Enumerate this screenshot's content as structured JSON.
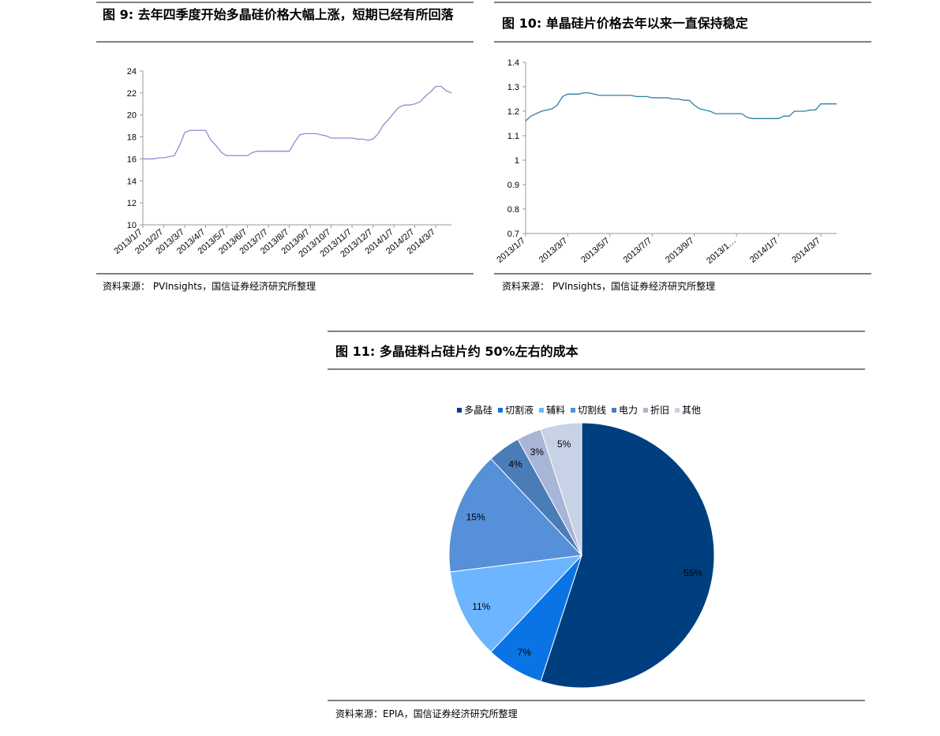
{
  "chart_data": [
    {
      "type": "line",
      "title": "图 9: 去年四季度开始多晶硅价格大幅上涨，短期已经有所回落",
      "source": "资料来源： PVInsights，国信证券经济研究所整理",
      "color": "#8a8fd0",
      "categories": [
        "2013/1/7",
        null,
        null,
        null,
        "2013/2/7",
        null,
        null,
        null,
        "2013/3/7",
        null,
        null,
        null,
        "2013/4/7",
        null,
        null,
        null,
        "2013/5/7",
        null,
        null,
        null,
        "2013/6/7",
        null,
        null,
        null,
        "2013/7/7",
        null,
        null,
        null,
        "2013/8/7",
        null,
        null,
        null,
        "2013/9/7",
        null,
        null,
        null,
        "2013/10/7",
        null,
        null,
        null,
        "2013/11/7",
        null,
        null,
        null,
        "2013/12/7",
        null,
        null,
        null,
        "2014/1/7",
        null,
        null,
        null,
        "2014/2/7",
        null,
        null,
        null,
        "2014/3/7",
        null,
        null,
        null
      ],
      "values": [
        16.0,
        16.0,
        16.0,
        16.1,
        16.1,
        16.2,
        16.3,
        17.2,
        18.4,
        18.6,
        18.6,
        18.6,
        18.6,
        17.7,
        17.2,
        16.6,
        16.3,
        16.3,
        16.3,
        16.3,
        16.3,
        16.6,
        16.7,
        16.7,
        16.7,
        16.7,
        16.7,
        16.7,
        16.7,
        17.5,
        18.2,
        18.3,
        18.3,
        18.3,
        18.2,
        18.1,
        17.9,
        17.9,
        17.9,
        17.9,
        17.9,
        17.8,
        17.8,
        17.7,
        17.8,
        18.3,
        19.1,
        19.6,
        20.2,
        20.7,
        20.9,
        20.9,
        21.0,
        21.2,
        21.7,
        22.1,
        22.6,
        22.6,
        22.2,
        22.0
      ],
      "ylim": [
        10,
        24
      ],
      "yticks": [
        10,
        12,
        14,
        16,
        18,
        20,
        22,
        24
      ]
    },
    {
      "type": "line",
      "title": "图 10:  单晶硅片价格去年以来一直保持稳定",
      "source": "资料来源： PVInsights，国信证券经济研究所整理",
      "color": "#2f7fa6",
      "categories": [
        "2013/1/7",
        null,
        null,
        null,
        null,
        null,
        null,
        null,
        "2013/3/7",
        null,
        null,
        null,
        null,
        null,
        null,
        null,
        "2013/5/7",
        null,
        null,
        null,
        null,
        null,
        null,
        null,
        "2013/7/7",
        null,
        null,
        null,
        null,
        null,
        null,
        null,
        "2013/9/7",
        null,
        null,
        null,
        null,
        null,
        null,
        null,
        "2013/1…",
        null,
        null,
        null,
        null,
        null,
        null,
        null,
        "2014/1/7",
        null,
        null,
        null,
        null,
        null,
        null,
        null,
        "2014/3/7",
        null,
        null,
        null
      ],
      "values": [
        1.16,
        1.18,
        1.19,
        1.2,
        1.205,
        1.21,
        1.225,
        1.26,
        1.27,
        1.27,
        1.27,
        1.275,
        1.275,
        1.27,
        1.265,
        1.265,
        1.265,
        1.265,
        1.265,
        1.265,
        1.265,
        1.26,
        1.26,
        1.26,
        1.255,
        1.255,
        1.255,
        1.255,
        1.25,
        1.25,
        1.245,
        1.245,
        1.225,
        1.21,
        1.205,
        1.2,
        1.19,
        1.19,
        1.19,
        1.19,
        1.19,
        1.19,
        1.175,
        1.17,
        1.17,
        1.17,
        1.17,
        1.17,
        1.17,
        1.18,
        1.18,
        1.2,
        1.2,
        1.2,
        1.205,
        1.205,
        1.23,
        1.23,
        1.23,
        1.23
      ],
      "ylim": [
        0.7,
        1.4
      ],
      "yticks": [
        0.7,
        0.8,
        0.9,
        1,
        1.1,
        1.2,
        1.3,
        1.4
      ]
    },
    {
      "type": "pie",
      "title": "图  11:  多晶硅料占硅片约 50%左右的成本",
      "source": "资料来源：EPIA，国信证券经济研究所整理",
      "categories": [
        "多晶硅",
        "切割液",
        "辅料",
        "切割线",
        "电力",
        "折旧",
        "其他"
      ],
      "values": [
        55,
        7,
        11,
        15,
        4,
        3,
        5
      ],
      "value_labels": [
        "55%",
        "7%",
        "11%",
        "15%",
        "4%",
        "3%",
        "5%"
      ],
      "colors": [
        "#003f7f",
        "#0a74e6",
        "#6db6ff",
        "#5590d8",
        "#4a7db8",
        "#a7b5d6",
        "#c8d2e6"
      ]
    }
  ]
}
